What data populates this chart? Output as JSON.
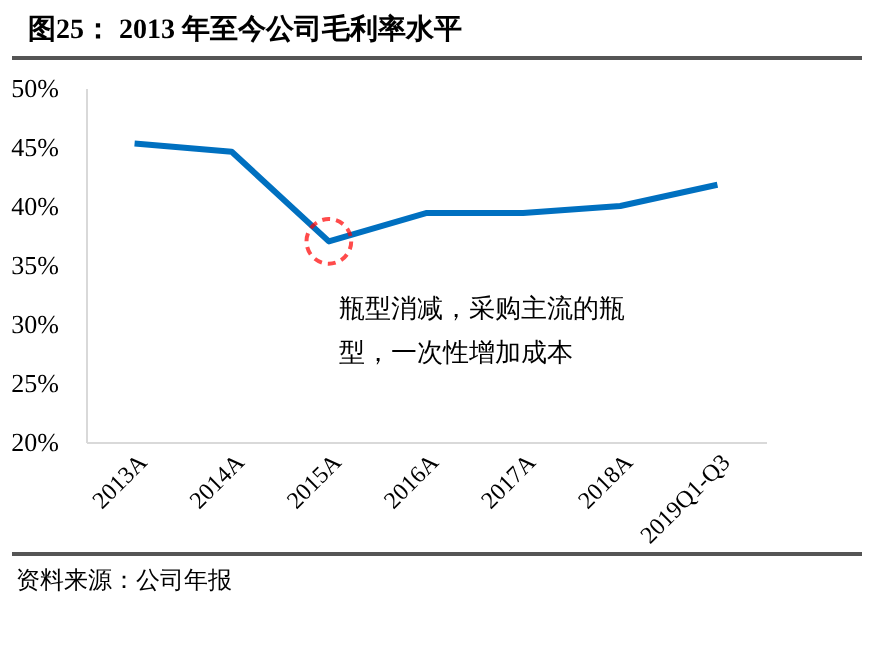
{
  "chart_data": {
    "type": "line",
    "title": "图25：  2013 年至今公司毛利率水平",
    "categories": [
      "2013A",
      "2014A",
      "2015A",
      "2016A",
      "2017A",
      "2018A",
      "2019Q1-Q3"
    ],
    "series": [
      {
        "color": "#0070c0",
        "values": [
          45.3,
          44.6,
          37.0,
          39.4,
          39.4,
          40.0,
          41.8
        ]
      }
    ],
    "ylim": [
      20,
      50
    ],
    "yticks": [
      {
        "value": 20,
        "label": "20%"
      },
      {
        "value": 25,
        "label": "25%"
      },
      {
        "value": 30,
        "label": "30%"
      },
      {
        "value": 35,
        "label": "35%"
      },
      {
        "value": 40,
        "label": "40%"
      },
      {
        "value": 45,
        "label": "45%"
      },
      {
        "value": 50,
        "label": "50%"
      }
    ],
    "grid": false,
    "legend": false,
    "marker": "none",
    "line_style": "solid",
    "annotations": [
      {
        "text": "瓶型消减，采购主流的瓶型，一次性增加成本",
        "x": "2015A",
        "y": 37
      },
      "资料来源：公司年报"
    ]
  }
}
